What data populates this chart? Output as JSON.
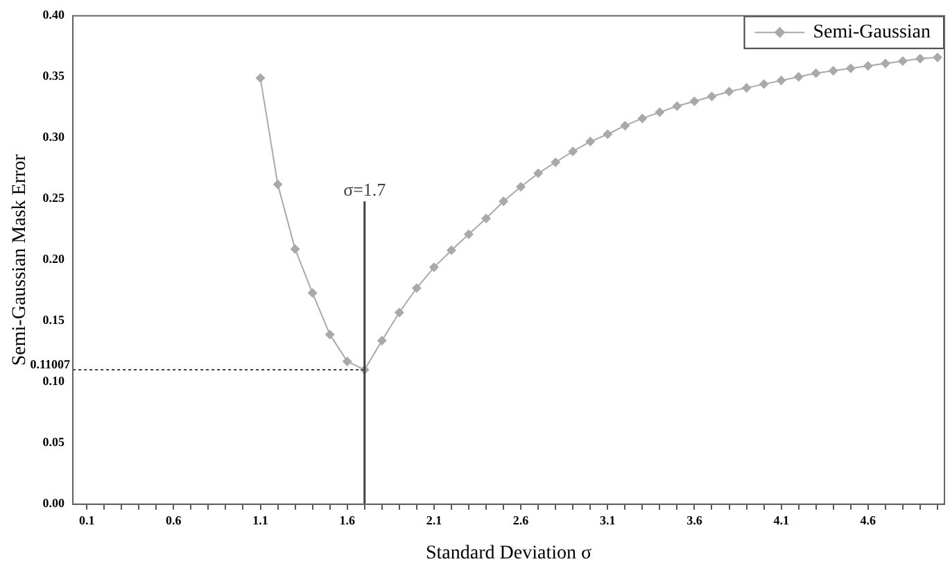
{
  "chart_data": {
    "type": "line",
    "xlabel": "Standard Deviation σ",
    "ylabel": "Semi-Gaussian Mask Error",
    "x": [
      1.1,
      1.2,
      1.3,
      1.4,
      1.5,
      1.6,
      1.7,
      1.8,
      1.9,
      2.0,
      2.1,
      2.2,
      2.3,
      2.4,
      2.5,
      2.6,
      2.7,
      2.8,
      2.9,
      3.0,
      3.1,
      3.2,
      3.3,
      3.4,
      3.5,
      3.6,
      3.7,
      3.8,
      3.9,
      4.0,
      4.1,
      4.2,
      4.3,
      4.4,
      4.5,
      4.6,
      4.7,
      4.8,
      4.9,
      5.0
    ],
    "series": [
      {
        "name": "Semi-Gaussian",
        "color": "#a9a9a9",
        "values": [
          0.349,
          0.262,
          0.209,
          0.173,
          0.139,
          0.117,
          0.11007,
          0.134,
          0.157,
          0.177,
          0.194,
          0.208,
          0.221,
          0.234,
          0.248,
          0.26,
          0.271,
          0.28,
          0.289,
          0.297,
          0.303,
          0.31,
          0.316,
          0.321,
          0.326,
          0.33,
          0.334,
          0.338,
          0.341,
          0.344,
          0.347,
          0.35,
          0.353,
          0.355,
          0.357,
          0.359,
          0.361,
          0.363,
          0.365,
          0.366
        ]
      }
    ],
    "xlim": [
      0.02,
      5.04
    ],
    "xticks": [
      0.1,
      {
        "value": 0.2,
        "label": null
      },
      {
        "value": 0.3,
        "label": null
      },
      {
        "value": 0.4,
        "label": null
      },
      {
        "value": 0.5,
        "label": null
      },
      0.6,
      {
        "value": 0.7,
        "label": null
      },
      {
        "value": 0.8,
        "label": null
      },
      {
        "value": 0.9,
        "label": null
      },
      {
        "value": 1.0,
        "label": null
      },
      1.1,
      {
        "value": 1.2,
        "label": null
      },
      {
        "value": 1.3,
        "label": null
      },
      {
        "value": 1.4,
        "label": null
      },
      {
        "value": 1.5,
        "label": null
      },
      1.6,
      {
        "value": 1.7,
        "label": null
      },
      {
        "value": 1.8,
        "label": null
      },
      {
        "value": 1.9,
        "label": null
      },
      {
        "value": 2.0,
        "label": null
      },
      2.1,
      {
        "value": 2.2,
        "label": null
      },
      {
        "value": 2.3,
        "label": null
      },
      {
        "value": 2.4,
        "label": null
      },
      {
        "value": 2.5,
        "label": null
      },
      2.6,
      {
        "value": 2.7,
        "label": null
      },
      {
        "value": 2.8,
        "label": null
      },
      {
        "value": 2.9,
        "label": null
      },
      {
        "value": 3.0,
        "label": null
      },
      3.1,
      {
        "value": 3.2,
        "label": null
      },
      {
        "value": 3.3,
        "label": null
      },
      {
        "value": 3.4,
        "label": null
      },
      {
        "value": 3.5,
        "label": null
      },
      3.6,
      {
        "value": 3.7,
        "label": null
      },
      {
        "value": 3.8,
        "label": null
      },
      {
        "value": 3.9,
        "label": null
      },
      {
        "value": 4.0,
        "label": null
      },
      4.1,
      {
        "value": 4.2,
        "label": null
      },
      {
        "value": 4.3,
        "label": null
      },
      {
        "value": 4.4,
        "label": null
      },
      {
        "value": 4.5,
        "label": null
      },
      4.6,
      {
        "value": 4.7,
        "label": null
      },
      {
        "value": 4.8,
        "label": null
      },
      {
        "value": 4.9,
        "label": null
      },
      {
        "value": 5.0,
        "label": null
      }
    ],
    "ylim": [
      0,
      0.4
    ],
    "yticks": [
      {
        "value": 0,
        "label": "0.00"
      },
      {
        "value": 0.05,
        "label": "0.05"
      },
      {
        "value": 0.1,
        "label": "0.10"
      },
      {
        "value": 0.15,
        "label": "0.15"
      },
      {
        "value": 0.2,
        "label": "0.20"
      },
      {
        "value": 0.25,
        "label": "0.25"
      },
      {
        "value": 0.3,
        "label": "0.30"
      },
      {
        "value": 0.35,
        "label": "0.35"
      },
      {
        "value": 0.4,
        "label": "0.40"
      }
    ],
    "ref_lines": [
      {
        "axis": "x",
        "value": 1.7,
        "label": "σ=1.7",
        "color": "#404040",
        "line_style": "solid"
      },
      {
        "axis": "y",
        "value": 0.11007,
        "label": "0.11007",
        "color": "#404040",
        "line_style": "dotted"
      }
    ],
    "grid": false,
    "legend": "top right",
    "marker": "diamond",
    "line_style": "solid"
  }
}
